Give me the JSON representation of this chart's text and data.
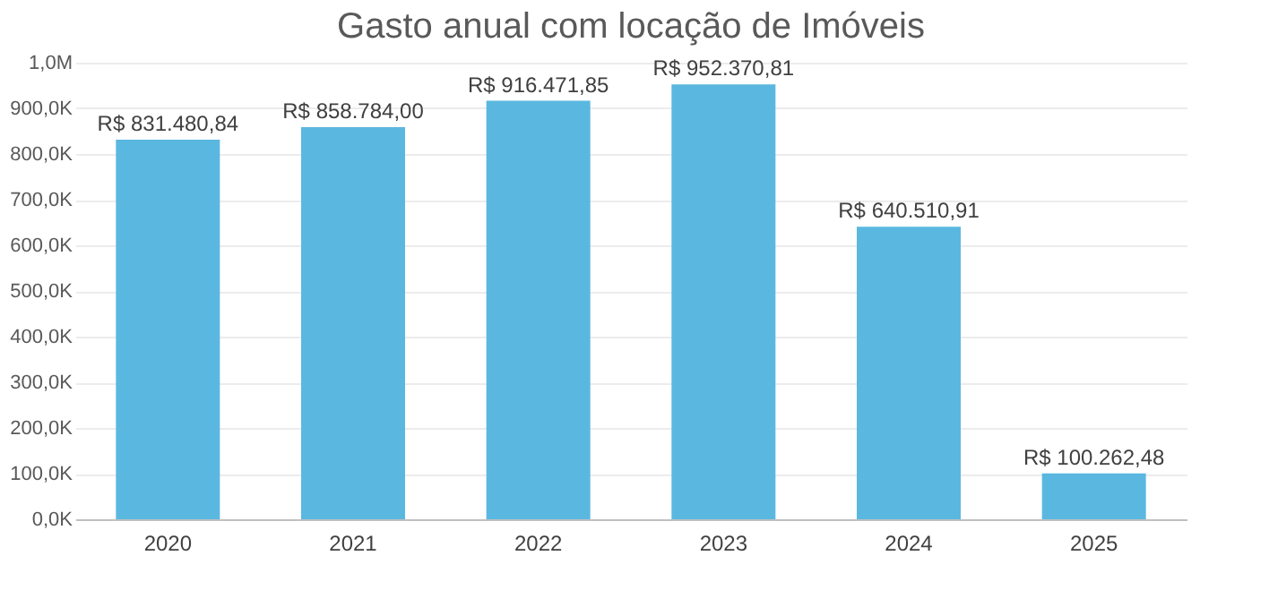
{
  "chart_data": {
    "type": "bar",
    "title": "Gasto anual com locação de Imóveis",
    "categories": [
      "2020",
      "2021",
      "2022",
      "2023",
      "2024",
      "2025"
    ],
    "values": [
      831480.84,
      858784.0,
      916471.85,
      952370.81,
      640510.91,
      100262.48
    ],
    "value_labels": [
      "R$ 831.480,84",
      "R$ 858.784,00",
      "R$ 916.471,85",
      "R$ 952.370,81",
      "R$ 640.510,91",
      "R$ 100.262,48"
    ],
    "color": "#5ab8e0",
    "ylim": [
      0,
      1000000
    ],
    "yticks": [
      {
        "value": 0,
        "label": "0,0K"
      },
      {
        "value": 100000,
        "label": "100,0K"
      },
      {
        "value": 200000,
        "label": "200,0K"
      },
      {
        "value": 300000,
        "label": "300,0K"
      },
      {
        "value": 400000,
        "label": "400,0K"
      },
      {
        "value": 500000,
        "label": "500,0K"
      },
      {
        "value": 600000,
        "label": "600,0K"
      },
      {
        "value": 700000,
        "label": "700,0K"
      },
      {
        "value": 800000,
        "label": "800,0K"
      },
      {
        "value": 900000,
        "label": "900,0K"
      },
      {
        "value": 1000000,
        "label": "1,0M"
      }
    ],
    "grid": "y"
  }
}
